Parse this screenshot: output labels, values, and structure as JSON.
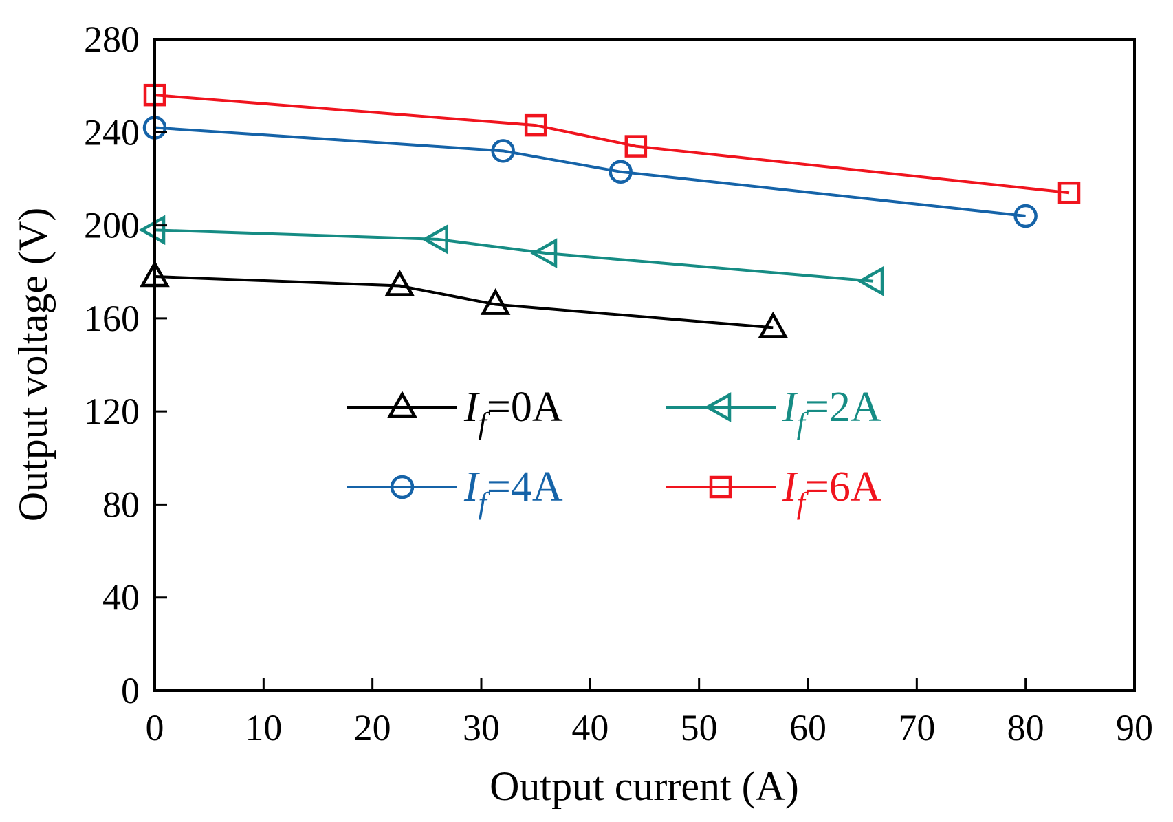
{
  "chart_data": {
    "type": "line",
    "title": "",
    "xlabel": "Output current (A)",
    "ylabel": "Output voltage (V)",
    "xlim": [
      0,
      90
    ],
    "ylim": [
      0,
      280
    ],
    "xticks": [
      0,
      10,
      20,
      30,
      40,
      50,
      60,
      70,
      80,
      90
    ],
    "yticks": [
      0,
      40,
      80,
      120,
      160,
      200,
      240,
      280
    ],
    "grid": false,
    "legend_position": "center",
    "series": [
      {
        "name": "If=0A",
        "label_main": "I",
        "label_sub": "f",
        "label_rest": "=0A",
        "color": "#000000",
        "marker": "triangle-up",
        "x": [
          0,
          22.5,
          31.3,
          56.8
        ],
        "y": [
          178,
          174,
          166,
          156
        ]
      },
      {
        "name": "If=2A",
        "label_main": "I",
        "label_sub": "f",
        "label_rest": "=2A",
        "color": "#168C84",
        "marker": "triangle-left",
        "x": [
          0,
          26,
          36,
          66
        ],
        "y": [
          198,
          194,
          188,
          176
        ]
      },
      {
        "name": "If=4A",
        "label_main": "I",
        "label_sub": "f",
        "label_rest": "=4A",
        "color": "#1563A8",
        "marker": "circle",
        "x": [
          0,
          32,
          42.8,
          80
        ],
        "y": [
          242,
          232,
          223,
          204
        ]
      },
      {
        "name": "If=6A",
        "label_main": "I",
        "label_sub": "f",
        "label_rest": "=6A",
        "color": "#F0141E",
        "marker": "square",
        "x": [
          0,
          35,
          44.2,
          84
        ],
        "y": [
          256,
          243,
          234,
          214
        ]
      }
    ]
  }
}
